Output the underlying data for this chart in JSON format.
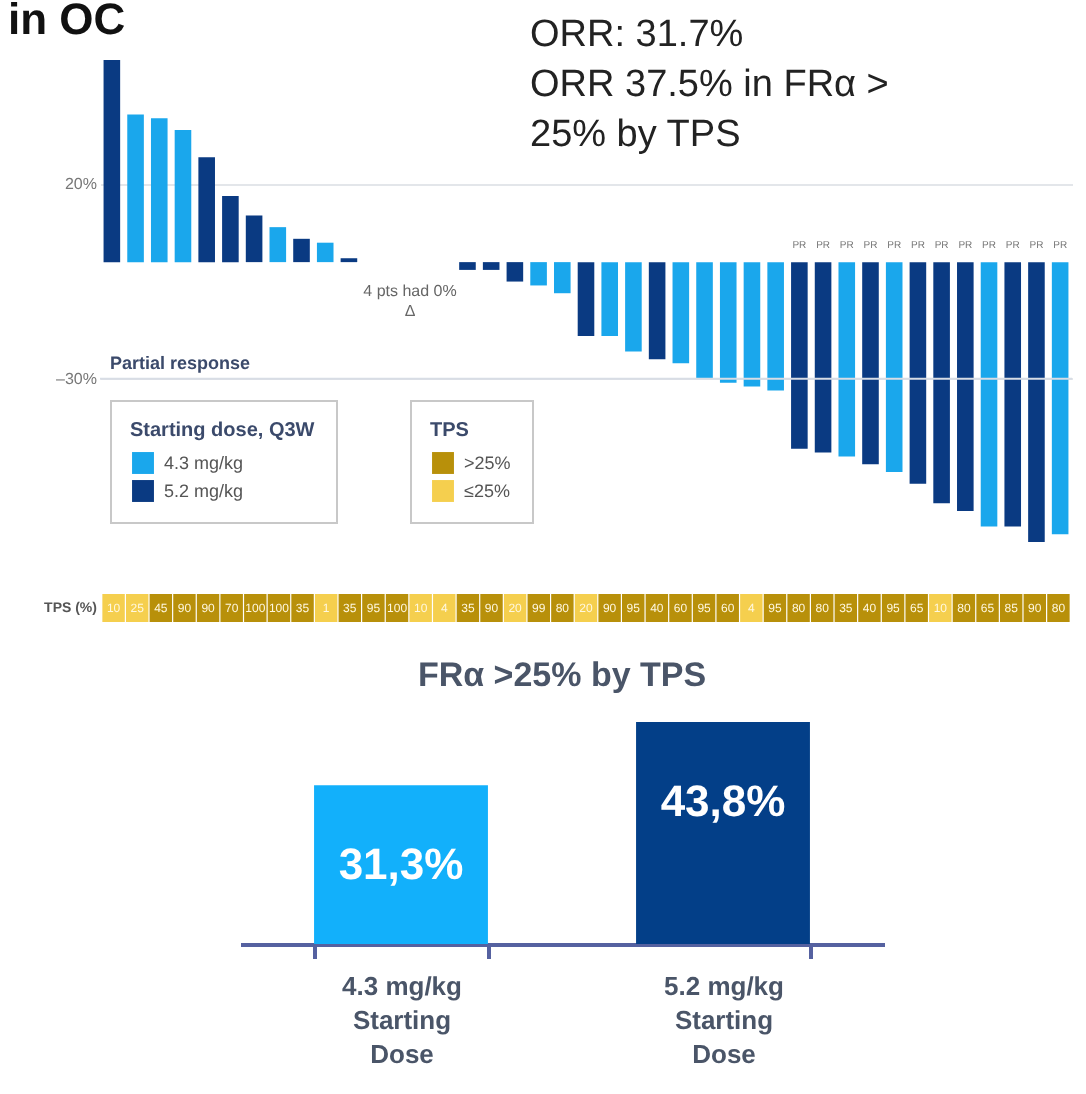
{
  "chart_data": [
    {
      "type": "bar",
      "title": "in OC",
      "categories": [
        null,
        null,
        null,
        null,
        null,
        null,
        null,
        null,
        null,
        null,
        null,
        null,
        null,
        null,
        null,
        null,
        null,
        null,
        null,
        null,
        null,
        null,
        null,
        null,
        null,
        null,
        null,
        null,
        null,
        null,
        null,
        null,
        null,
        null,
        null,
        null,
        null,
        null,
        null,
        null,
        null
      ],
      "series": [
        {
          "name": "4.3 mg/kg",
          "color": "#1aa7ec",
          "values": [
            null,
            38,
            37,
            34,
            null,
            null,
            null,
            9,
            null,
            5,
            null,
            0,
            null,
            0,
            null,
            null,
            null,
            null,
            -6,
            -8,
            null,
            -19,
            -23,
            null,
            -26,
            -30,
            -31,
            -32,
            -33,
            null,
            null,
            -50,
            null,
            -54,
            null,
            null,
            null,
            -68,
            null,
            null,
            -70
          ],
          "value_labels": [
            null,
            null,
            null,
            null,
            null,
            null,
            null,
            null,
            null,
            null,
            null,
            null,
            null,
            null,
            null,
            null,
            null,
            null,
            null,
            null,
            null,
            null,
            null,
            null,
            null,
            null,
            null,
            null,
            null,
            null,
            null,
            "PR",
            null,
            "PR",
            null,
            null,
            null,
            "PR",
            null,
            null,
            "PR"
          ]
        },
        {
          "name": "5.2 mg/kg",
          "color": "#0a3a82",
          "values": [
            52,
            null,
            null,
            null,
            27,
            17,
            12,
            null,
            6,
            null,
            1,
            null,
            0,
            null,
            0,
            -2,
            -2,
            -5,
            null,
            null,
            -19,
            null,
            null,
            -25,
            null,
            null,
            null,
            null,
            null,
            -48,
            -49,
            null,
            -52,
            null,
            -57,
            -62,
            -64,
            null,
            -68,
            -72,
            null
          ],
          "value_labels": [
            null,
            null,
            null,
            null,
            null,
            null,
            null,
            null,
            null,
            null,
            null,
            null,
            null,
            null,
            null,
            null,
            null,
            null,
            null,
            null,
            null,
            null,
            null,
            null,
            null,
            null,
            null,
            null,
            null,
            "PR",
            "PR",
            null,
            "PR",
            null,
            "PR",
            "PR",
            "PR",
            null,
            "PR",
            "PR",
            null
          ]
        }
      ],
      "legend_title": "Starting dose, Q3W",
      "legend": "bottom left",
      "ylim": [
        -72,
        52
      ],
      "yticks": [
        {
          "value": 20,
          "label": "20%"
        },
        {
          "value": -30,
          "label": "–30%"
        }
      ],
      "grid": "y",
      "tick_labels": "y",
      "ref_lines": [
        {
          "axis": "y",
          "value": -30,
          "label": "Partial response",
          "color": "#d8dde5"
        }
      ],
      "annotations": [
        "ORR: 31.7%\nORR 37.5% in FRα >\n25% by TPS",
        "4 pts had 0%\nΔ"
      ]
    },
    {
      "type": "heatmap",
      "categories": [
        null,
        null,
        null,
        null,
        null,
        null,
        null,
        null,
        null,
        null,
        null,
        null,
        null,
        null,
        null,
        null,
        null,
        null,
        null,
        null,
        null,
        null,
        null,
        null,
        null,
        null,
        null,
        null,
        null,
        null,
        null,
        null,
        null,
        null,
        null,
        null,
        null,
        null,
        null,
        null,
        null
      ],
      "y_categories": [
        "TPS (%)"
      ],
      "cells": [
        [
          10,
          25,
          45,
          90,
          90,
          70,
          100,
          100,
          35,
          1,
          35,
          95,
          100,
          10,
          4,
          35,
          90,
          20,
          99,
          80,
          20,
          90,
          95,
          40,
          60,
          95,
          60,
          4,
          95,
          80,
          80,
          35,
          40,
          95,
          65,
          10,
          80,
          65,
          85,
          90,
          80
        ]
      ],
      "colors": [
        "#f5cf4e",
        "#f5cf4e",
        "#b8900a",
        "#b8900a",
        "#b8900a",
        "#b8900a",
        "#b8900a",
        "#b8900a",
        "#b8900a",
        "#f5cf4e",
        "#b8900a",
        "#b8900a",
        "#b8900a",
        "#f5cf4e",
        "#f5cf4e",
        "#b8900a",
        "#b8900a",
        "#f5cf4e",
        "#b8900a",
        "#b8900a",
        "#f5cf4e",
        "#b8900a",
        "#b8900a",
        "#b8900a",
        "#b8900a",
        "#b8900a",
        "#b8900a",
        "#f5cf4e",
        "#b8900a",
        "#b8900a",
        "#b8900a",
        "#b8900a",
        "#b8900a",
        "#b8900a",
        "#b8900a",
        "#f5cf4e",
        "#b8900a",
        "#b8900a",
        "#b8900a",
        "#b8900a",
        "#b8900a"
      ],
      "legend_title": "TPS",
      "annotations": [
        ">25%",
        "≤25%"
      ],
      "data_labels": true
    },
    {
      "type": "bar",
      "title": "FRα >25% by TPS",
      "categories": [
        "4.3 mg/kg\nStarting\nDose",
        "5.2 mg/kg\nStarting\nDose"
      ],
      "values": [
        31.3,
        43.8
      ],
      "colors": [
        "#12b0fb",
        "#033f88"
      ],
      "value_labels": [
        "31,3%",
        "43,8%"
      ],
      "tick_labels": "x"
    }
  ]
}
